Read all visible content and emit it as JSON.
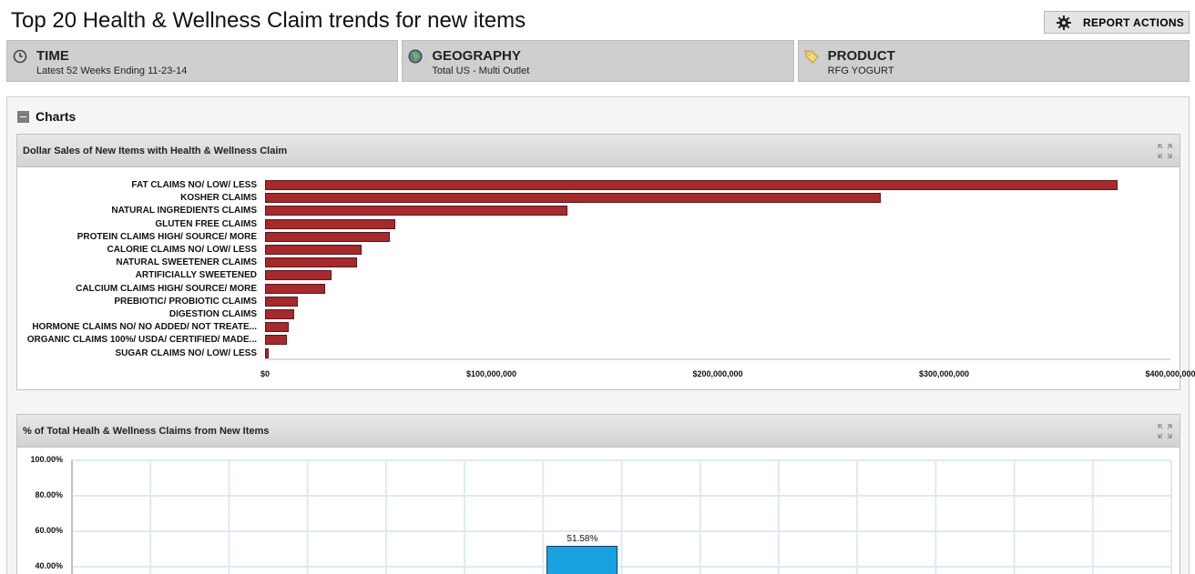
{
  "page": {
    "title": "Top 20 Health & Wellness Claim trends for new items",
    "report_actions_label": "REPORT ACTIONS"
  },
  "filters": [
    {
      "heading": "TIME",
      "value": "Latest 52 Weeks Ending 11-23-14",
      "icon": "clock-icon"
    },
    {
      "heading": "GEOGRAPHY",
      "value": "Total US - Multi Outlet",
      "icon": "globe-icon"
    },
    {
      "heading": "PRODUCT",
      "value": "RFG YOGURT",
      "icon": "tag-icon"
    }
  ],
  "charts_section": {
    "label": "Charts"
  },
  "colors": {
    "bar": "#a42a2d",
    "column": "#1aa1df",
    "grid": "#dde9f5"
  },
  "chart_data": [
    {
      "type": "bar",
      "orientation": "horizontal",
      "title": "Dollar Sales of New Items with Health & Wellness Claim",
      "categories": [
        "FAT CLAIMS NO/ LOW/ LESS",
        "KOSHER CLAIMS",
        "NATURAL INGREDIENTS CLAIMS",
        "GLUTEN FREE CLAIMS",
        "PROTEIN CLAIMS HIGH/ SOURCE/ MORE",
        "CALORIE CLAIMS NO/ LOW/ LESS",
        "NATURAL SWEETENER CLAIMS",
        "ARTIFICIALLY SWEETENED",
        "CALCIUM CLAIMS HIGH/ SOURCE/ MORE",
        "PREBIOTIC/ PROBIOTIC CLAIMS",
        "DIGESTION CLAIMS",
        "HORMONE CLAIMS NO/ NO ADDED/ NOT TREATE...",
        "ORGANIC CLAIMS 100%/ USDA/ CERTIFIED/ MADE...",
        "SUGAR CLAIMS NO/ LOW/ LESS"
      ],
      "values": [
        376500000,
        272000000,
        133500000,
        57500000,
        55000000,
        42500000,
        40500000,
        29500000,
        26500000,
        14500000,
        13000000,
        10500000,
        9500000,
        1800000
      ],
      "xlim": [
        0,
        400000000
      ],
      "xticks": [
        "$0",
        "$100,000,000",
        "$200,000,000",
        "$300,000,000",
        "$400,000,000"
      ],
      "grid": false
    },
    {
      "type": "bar",
      "orientation": "vertical",
      "title": "%  of Total Healh & Wellness Claims from New Items",
      "columns": 14,
      "highlighted_index": 6,
      "values": [
        null,
        null,
        null,
        null,
        null,
        null,
        51.58,
        null,
        null,
        null,
        null,
        null,
        null,
        null
      ],
      "data_labels": [
        "51.58%"
      ],
      "ylim": [
        0,
        100
      ],
      "yticks": [
        "100.00%",
        "80.00%",
        "60.00%",
        "40.00%"
      ],
      "grid": true
    }
  ]
}
